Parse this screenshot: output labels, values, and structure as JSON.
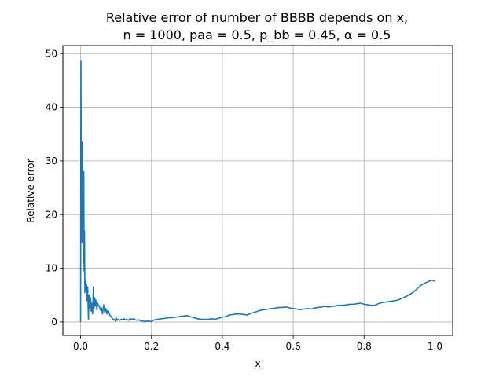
{
  "chart_data": {
    "type": "line",
    "title_lines": [
      "Relative error of number of BBBB depends on x,",
      "n = 1000, paa = 0.5, p_bb = 0.45, α = 0.5"
    ],
    "xlabel": "x",
    "ylabel": "Relative error",
    "xlim": [
      -0.05,
      1.05
    ],
    "ylim": [
      -2.5,
      51.5
    ],
    "x_ticks": [
      0.0,
      0.2,
      0.4,
      0.6,
      0.8,
      1.0
    ],
    "x_tick_labels": [
      "0.0",
      "0.2",
      "0.4",
      "0.6",
      "0.8",
      "1.0"
    ],
    "y_ticks": [
      0,
      10,
      20,
      30,
      40,
      50
    ],
    "y_tick_labels": [
      "0",
      "10",
      "20",
      "30",
      "40",
      "50"
    ],
    "grid": true,
    "line_color": "#1f77b4",
    "series": [
      {
        "x": [
          0.0,
          0.001,
          0.002,
          0.003,
          0.004,
          0.005,
          0.006,
          0.007,
          0.008,
          0.009,
          0.01,
          0.011,
          0.012,
          0.013,
          0.014,
          0.015,
          0.016,
          0.017,
          0.018,
          0.02,
          0.022,
          0.024,
          0.026,
          0.028,
          0.03,
          0.032,
          0.034,
          0.036,
          0.038,
          0.04,
          0.042,
          0.044,
          0.046,
          0.048,
          0.05,
          0.053,
          0.056,
          0.059,
          0.062,
          0.065,
          0.068,
          0.071,
          0.074,
          0.077,
          0.08,
          0.083,
          0.086,
          0.09,
          0.094,
          0.098,
          0.1,
          0.103,
          0.106,
          0.11,
          0.114,
          0.118,
          0.122,
          0.126,
          0.13,
          0.135,
          0.14,
          0.145,
          0.15,
          0.155,
          0.16,
          0.165,
          0.17,
          0.175,
          0.18,
          0.185,
          0.19,
          0.195,
          0.2,
          0.205,
          0.21,
          0.215,
          0.22,
          0.225,
          0.23,
          0.24,
          0.25,
          0.26,
          0.27,
          0.28,
          0.29,
          0.3,
          0.31,
          0.32,
          0.33,
          0.34,
          0.35,
          0.36,
          0.37,
          0.38,
          0.39,
          0.4,
          0.41,
          0.42,
          0.43,
          0.44,
          0.45,
          0.46,
          0.47,
          0.48,
          0.49,
          0.5,
          0.51,
          0.52,
          0.53,
          0.54,
          0.55,
          0.56,
          0.57,
          0.58,
          0.59,
          0.6,
          0.61,
          0.62,
          0.63,
          0.64,
          0.65,
          0.66,
          0.67,
          0.68,
          0.69,
          0.7,
          0.71,
          0.72,
          0.73,
          0.74,
          0.75,
          0.76,
          0.77,
          0.78,
          0.79,
          0.8,
          0.81,
          0.82,
          0.83,
          0.84,
          0.85,
          0.86,
          0.87,
          0.88,
          0.89,
          0.9,
          0.91,
          0.92,
          0.93,
          0.94,
          0.95,
          0.96,
          0.97,
          0.98,
          0.99,
          1.0
        ],
        "y": [
          0.0,
          48.6,
          22.0,
          30.5,
          14.8,
          33.5,
          18.0,
          26.0,
          11.0,
          28.0,
          9.5,
          17.0,
          5.5,
          8.0,
          6.0,
          6.5,
          5.5,
          7.0,
          4.0,
          6.5,
          0.5,
          5.0,
          2.5,
          4.5,
          2.0,
          3.5,
          1.5,
          6.5,
          2.5,
          4.5,
          3.0,
          4.0,
          2.2,
          3.5,
          3.0,
          3.0,
          2.2,
          2.6,
          1.5,
          3.2,
          1.8,
          2.5,
          1.5,
          2.2,
          1.8,
          1.2,
          1.0,
          0.6,
          0.5,
          0.2,
          0.8,
          0.3,
          0.5,
          0.3,
          0.5,
          0.4,
          0.6,
          0.4,
          0.5,
          0.3,
          0.6,
          0.5,
          0.6,
          0.4,
          0.3,
          0.4,
          0.2,
          0.2,
          0.1,
          0.1,
          0.2,
          0.1,
          0.1,
          0.3,
          0.4,
          0.5,
          0.5,
          0.6,
          0.6,
          0.7,
          0.8,
          0.8,
          0.9,
          1.0,
          1.1,
          1.2,
          1.0,
          0.8,
          0.6,
          0.5,
          0.5,
          0.5,
          0.6,
          0.5,
          0.7,
          0.9,
          1.0,
          1.3,
          1.4,
          1.5,
          1.5,
          1.4,
          1.3,
          1.6,
          1.8,
          2.0,
          2.2,
          2.3,
          2.4,
          2.5,
          2.6,
          2.7,
          2.7,
          2.8,
          2.6,
          2.5,
          2.4,
          2.3,
          2.4,
          2.5,
          2.4,
          2.6,
          2.7,
          2.8,
          2.9,
          2.8,
          2.9,
          3.0,
          3.1,
          3.1,
          3.2,
          3.3,
          3.3,
          3.4,
          3.5,
          3.3,
          3.2,
          3.1,
          3.1,
          3.4,
          3.6,
          3.7,
          3.8,
          3.9,
          4.0,
          4.2,
          4.5,
          4.8,
          5.2,
          5.6,
          6.2,
          6.8,
          7.2,
          7.5,
          7.8,
          7.6
        ]
      }
    ]
  }
}
